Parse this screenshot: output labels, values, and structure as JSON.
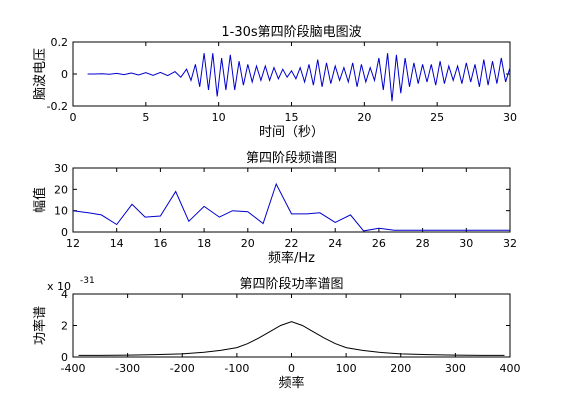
{
  "chart_data": [
    {
      "type": "line",
      "title": "1-30s第四阶段脑电图波",
      "xlabel": "时间（秒）",
      "ylabel": "脑波电压",
      "xlim": [
        0,
        30
      ],
      "ylim": [
        -0.2,
        0.2
      ],
      "xticks": [
        0,
        5,
        10,
        15,
        20,
        25,
        30
      ],
      "yticks": [
        -0.2,
        0,
        0.2
      ],
      "ytick_labels": [
        "-0.2",
        "0",
        "0.2"
      ],
      "color": "#0000cc",
      "x": [
        1,
        1.5,
        2,
        2.5,
        3,
        3.5,
        4,
        4.5,
        5,
        5.5,
        6,
        6.5,
        7,
        7.4,
        7.8,
        8.1,
        8.4,
        8.7,
        9.0,
        9.3,
        9.6,
        9.9,
        10.2,
        10.5,
        10.8,
        11.1,
        11.4,
        11.7,
        12.0,
        12.3,
        12.6,
        12.9,
        13.2,
        13.5,
        13.8,
        14.1,
        14.4,
        14.7,
        15.0,
        15.3,
        15.6,
        15.9,
        16.2,
        16.5,
        16.8,
        17.1,
        17.4,
        17.7,
        18.0,
        18.3,
        18.6,
        18.9,
        19.2,
        19.5,
        19.8,
        20.1,
        20.4,
        20.7,
        21.0,
        21.3,
        21.6,
        21.9,
        22.2,
        22.5,
        22.8,
        23.1,
        23.4,
        23.7,
        24.0,
        24.3,
        24.6,
        24.9,
        25.2,
        25.5,
        25.8,
        26.1,
        26.4,
        26.7,
        27.0,
        27.3,
        27.6,
        27.9,
        28.2,
        28.5,
        28.8,
        29.1,
        29.4,
        29.7,
        30.0
      ],
      "y": [
        0,
        0,
        0.002,
        -0.002,
        0.004,
        -0.004,
        0.006,
        -0.006,
        0.008,
        -0.008,
        0.01,
        -0.01,
        0.015,
        -0.02,
        0.03,
        -0.04,
        0.06,
        -0.08,
        0.13,
        -0.1,
        0.13,
        -0.14,
        0.1,
        -0.1,
        0.12,
        -0.1,
        0.08,
        -0.07,
        0.06,
        -0.05,
        0.05,
        -0.04,
        0.05,
        -0.04,
        0.04,
        -0.03,
        0.03,
        -0.02,
        0.02,
        -0.03,
        0.04,
        -0.05,
        0.06,
        -0.07,
        0.09,
        -0.08,
        0.07,
        -0.06,
        0.05,
        -0.04,
        0.04,
        -0.05,
        0.07,
        -0.08,
        0.06,
        -0.05,
        0.04,
        -0.04,
        0.1,
        -0.1,
        0.13,
        -0.17,
        0.12,
        -0.12,
        0.1,
        -0.08,
        0.07,
        -0.06,
        0.06,
        -0.05,
        0.06,
        -0.07,
        0.08,
        -0.06,
        0.05,
        -0.04,
        0.05,
        -0.06,
        0.07,
        -0.05,
        0.06,
        -0.08,
        0.09,
        -0.07,
        0.08,
        -0.06,
        0.1,
        -0.05,
        0.04
      ]
    },
    {
      "type": "line",
      "title": "第四阶段频谱图",
      "xlabel": "频率/Hz",
      "ylabel": "幅值",
      "xlim": [
        12,
        32
      ],
      "ylim": [
        0,
        30
      ],
      "xticks": [
        12,
        14,
        16,
        18,
        20,
        22,
        24,
        26,
        28,
        30,
        32
      ],
      "yticks": [
        0,
        10,
        20,
        30
      ],
      "color": "#0000cc",
      "x": [
        12,
        12.7,
        13.3,
        14,
        14.7,
        15.3,
        16,
        16.7,
        17.3,
        18,
        18.7,
        19.3,
        20,
        20.7,
        21.3,
        22,
        22.7,
        23.3,
        24,
        24.7,
        25.3,
        26,
        26.7,
        27.3,
        28,
        30,
        32
      ],
      "y": [
        10,
        9,
        8,
        3.5,
        13,
        7,
        7.5,
        19,
        5,
        12,
        7,
        10,
        9.5,
        4,
        22.5,
        8.5,
        8.5,
        9,
        4.5,
        8,
        0.5,
        1.8,
        0.8,
        0.8,
        0.8,
        0.8,
        0.8
      ]
    },
    {
      "type": "line",
      "title": "第四阶段功率谱图",
      "xlabel": "频率",
      "ylabel": "功率谱",
      "exponent_label": "x 10",
      "exponent": "-31",
      "xlim": [
        -400,
        400
      ],
      "ylim": [
        0,
        4
      ],
      "xticks": [
        -400,
        -300,
        -200,
        -100,
        0,
        100,
        200,
        300,
        400
      ],
      "yticks": [
        0,
        2,
        4
      ],
      "color": "#000000",
      "x": [
        -390,
        -350,
        -300,
        -250,
        -200,
        -160,
        -130,
        -100,
        -80,
        -60,
        -40,
        -20,
        0,
        20,
        40,
        60,
        80,
        100,
        130,
        160,
        200,
        250,
        300,
        350,
        390
      ],
      "y": [
        0.1,
        0.1,
        0.12,
        0.15,
        0.2,
        0.3,
        0.42,
        0.6,
        0.85,
        1.2,
        1.6,
        2.0,
        2.25,
        2.0,
        1.6,
        1.2,
        0.85,
        0.6,
        0.42,
        0.3,
        0.2,
        0.15,
        0.12,
        0.1,
        0.1
      ]
    }
  ]
}
